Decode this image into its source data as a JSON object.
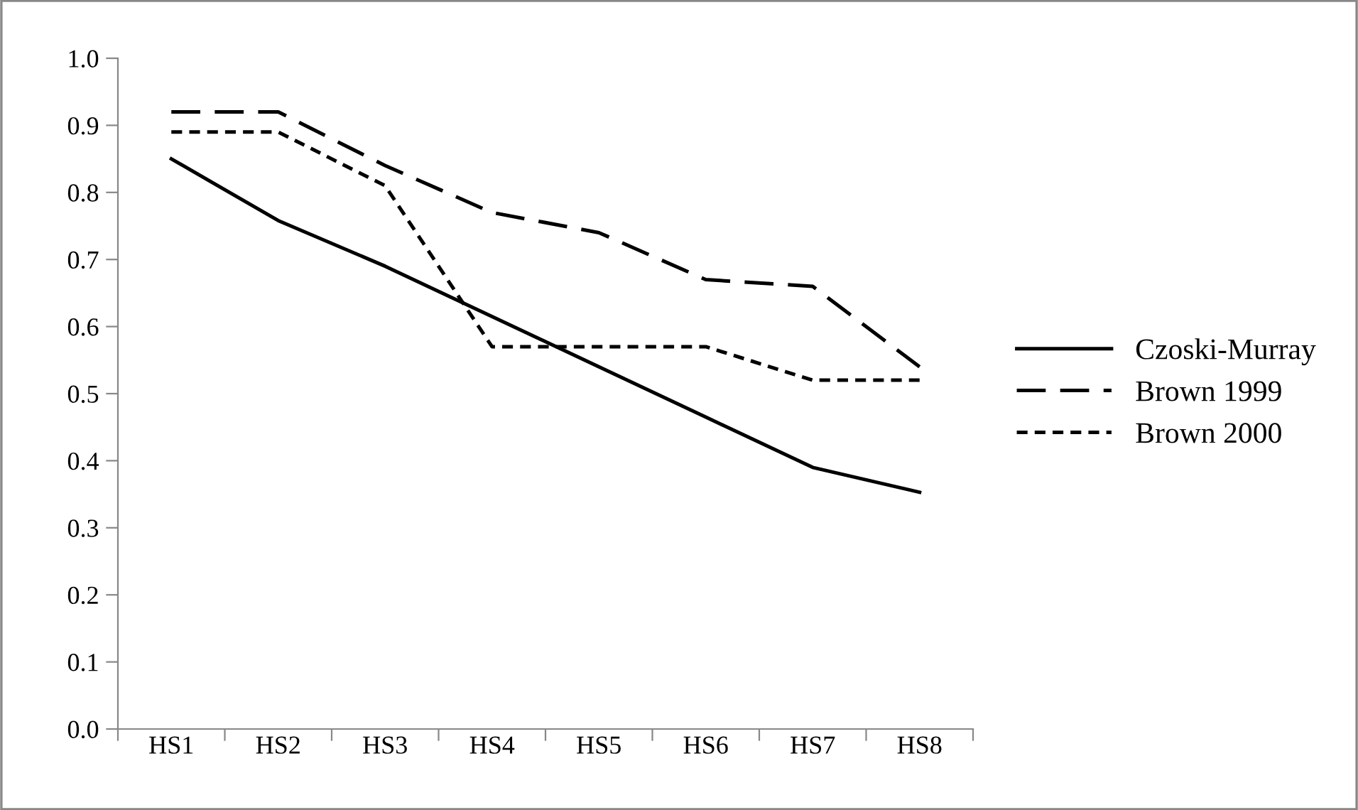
{
  "chart_data": {
    "type": "line",
    "categories": [
      "HS1",
      "HS2",
      "HS3",
      "HS4",
      "HS5",
      "HS6",
      "HS7",
      "HS8"
    ],
    "series": [
      {
        "name": "Czoski-Murray",
        "color": "#000000",
        "line_style": "solid",
        "values": [
          0.85,
          0.758,
          0.69,
          0.615,
          0.54,
          0.465,
          0.39,
          0.353
        ]
      },
      {
        "name": "Brown 1999",
        "color": "#000000",
        "line_style": "dashed",
        "values": [
          0.92,
          0.92,
          0.84,
          0.77,
          0.74,
          0.67,
          0.66,
          0.54
        ]
      },
      {
        "name": "Brown 2000",
        "color": "#000000",
        "line_style": "dotted",
        "values": [
          0.89,
          0.89,
          0.81,
          0.57,
          0.57,
          0.57,
          0.52,
          0.52
        ]
      }
    ],
    "ylim": [
      0,
      1
    ],
    "yticks": [
      {
        "value": 0,
        "label": "0.0"
      },
      {
        "value": 0.1,
        "label": "0.1"
      },
      {
        "value": 0.2,
        "label": "0.2"
      },
      {
        "value": 0.3,
        "label": "0.3"
      },
      {
        "value": 0.4,
        "label": "0.4"
      },
      {
        "value": 0.5,
        "label": "0.5"
      },
      {
        "value": 0.6,
        "label": "0.6"
      },
      {
        "value": 0.7,
        "label": "0.7"
      },
      {
        "value": 0.8,
        "label": "0.8"
      },
      {
        "value": 0.9,
        "label": "0.9"
      },
      {
        "value": 1,
        "label": "1.0"
      }
    ],
    "grid": false,
    "legend": "right",
    "marker": "none"
  }
}
